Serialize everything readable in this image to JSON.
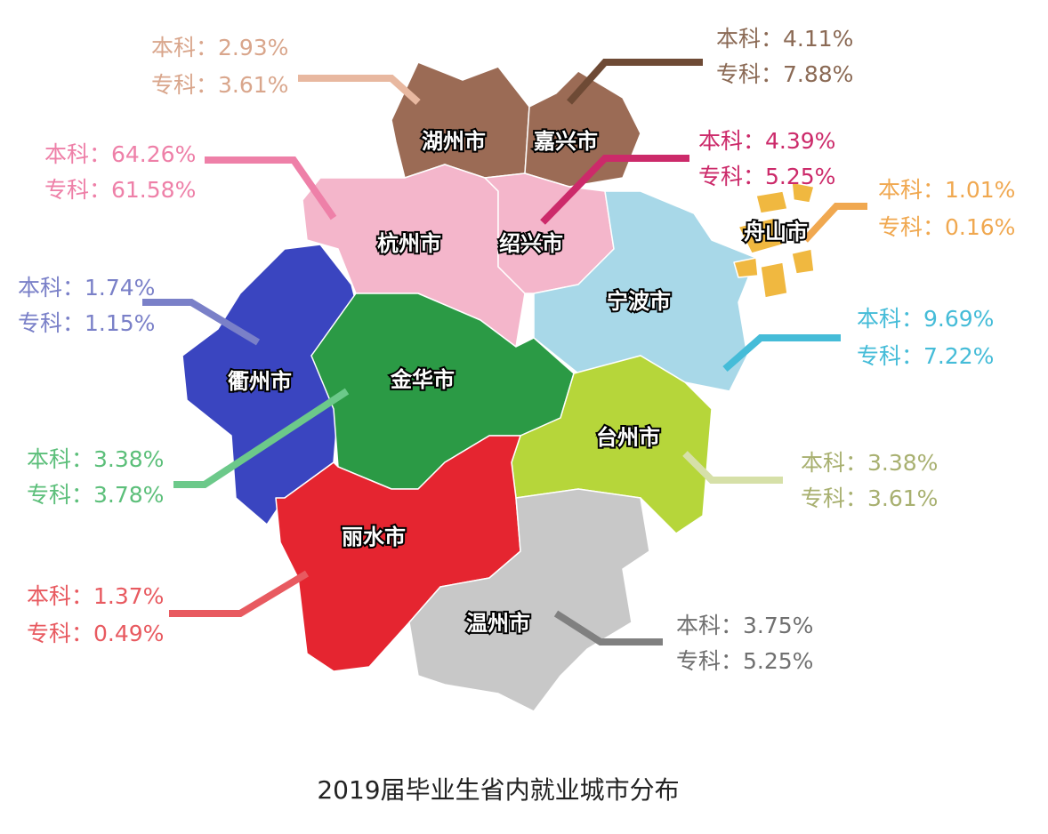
{
  "title": "2019届毕业生省内就业城市分布",
  "regions": [
    {
      "name": "湖州市",
      "lines": [
        "本科：2.93%",
        "专科：3.61%"
      ]
    },
    {
      "name": "嘉兴市",
      "lines": [
        "本科：4.11%",
        "专科：7.88%"
      ]
    },
    {
      "name": "杭州市",
      "lines": [
        "本科：64.26%",
        "专科：61.58%"
      ]
    },
    {
      "name": "绍兴市",
      "lines": [
        "本科：4.39%",
        "专科：5.25%"
      ]
    },
    {
      "name": "舟山市",
      "lines": [
        "本科：1.01%",
        "专科：0.16%"
      ]
    },
    {
      "name": "衢州市",
      "lines": [
        "本科：1.74%",
        "专科：1.15%"
      ]
    },
    {
      "name": "宁波市",
      "lines": [
        "本科：9.69%",
        "专科：7.22%"
      ]
    },
    {
      "name": "金华市",
      "lines": [
        "本科：3.38%",
        "专科：3.78%"
      ]
    },
    {
      "name": "台州市",
      "lines": [
        "本科：3.38%",
        "专科：3.61%"
      ]
    },
    {
      "name": "丽水市",
      "lines": [
        "本科：1.37%",
        "专科：0.49%"
      ]
    },
    {
      "name": "温州市",
      "lines": [
        "本科：3.75%",
        "专科：5.25%"
      ]
    }
  ]
}
